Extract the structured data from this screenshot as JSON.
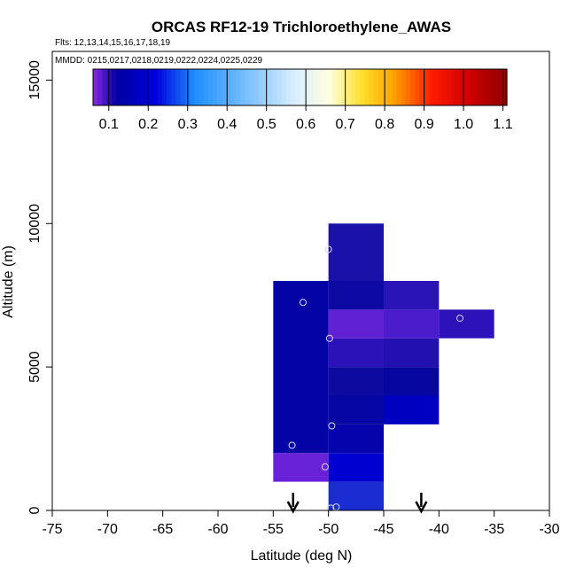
{
  "chart_data": {
    "type": "heatmap",
    "title": "ORCAS RF12-19 Trichloroethylene_AWAS",
    "flights_label": "Flts: 12,13,14,15,16,17,18,19",
    "dates_label": "MMDD: 0215,0217,0218,0219,0222,0224,0225,0229",
    "xlabel": "Latitude (deg N)",
    "ylabel": "Altitude (m)",
    "xlim": [
      -75,
      -30
    ],
    "ylim": [
      0,
      16000
    ],
    "x_ticks": [
      -75,
      -70,
      -65,
      -60,
      -55,
      -50,
      -45,
      -40,
      -35,
      -30
    ],
    "y_ticks": [
      0,
      5000,
      10000,
      15000
    ],
    "colorbar": {
      "min": 0.06,
      "max": 1.11,
      "ticks": [
        0.1,
        0.2,
        0.3,
        0.4,
        0.5,
        0.6,
        0.7,
        0.8,
        0.9,
        1.0,
        1.1
      ],
      "tick_labels": [
        "0.1",
        "0.2",
        "0.3",
        "0.4",
        "0.5",
        "0.6",
        "0.7",
        "0.8",
        "0.9",
        "1.0",
        "1.1"
      ],
      "stops": [
        {
          "v": 0.06,
          "c": "#8b2be2"
        },
        {
          "v": 0.12,
          "c": "#0000a0"
        },
        {
          "v": 0.22,
          "c": "#0000dd"
        },
        {
          "v": 0.32,
          "c": "#1e90ff"
        },
        {
          "v": 0.45,
          "c": "#79bfff"
        },
        {
          "v": 0.57,
          "c": "#d8eeff"
        },
        {
          "v": 0.66,
          "c": "#ffffe0"
        },
        {
          "v": 0.74,
          "c": "#ffe030"
        },
        {
          "v": 0.82,
          "c": "#ffa500"
        },
        {
          "v": 0.92,
          "c": "#ff1a00"
        },
        {
          "v": 1.02,
          "c": "#cc0000"
        },
        {
          "v": 1.11,
          "c": "#8b0000"
        }
      ]
    },
    "cells": [
      {
        "lat0": -55,
        "lat1": -50,
        "alt0": 1000,
        "alt1": 2000,
        "color": "#6a22d8"
      },
      {
        "lat0": -55,
        "lat1": -50,
        "alt0": 2000,
        "alt1": 8000,
        "color": "#0404a6"
      },
      {
        "lat0": -50,
        "lat1": -45,
        "alt0": 0,
        "alt1": 1000,
        "color": "#1a2dd0"
      },
      {
        "lat0": -50,
        "lat1": -45,
        "alt0": 1000,
        "alt1": 2000,
        "color": "#0000d0"
      },
      {
        "lat0": -50,
        "lat1": -45,
        "alt0": 2000,
        "alt1": 3000,
        "color": "#0404ac"
      },
      {
        "lat0": -50,
        "lat1": -45,
        "alt0": 3000,
        "alt1": 4000,
        "color": "#0606a4"
      },
      {
        "lat0": -50,
        "lat1": -45,
        "alt0": 4000,
        "alt1": 5000,
        "color": "#0d0aa0"
      },
      {
        "lat0": -50,
        "lat1": -45,
        "alt0": 5000,
        "alt1": 6000,
        "color": "#2a12b8"
      },
      {
        "lat0": -50,
        "lat1": -45,
        "alt0": 6000,
        "alt1": 7000,
        "color": "#6020d4"
      },
      {
        "lat0": -50,
        "lat1": -45,
        "alt0": 7000,
        "alt1": 8000,
        "color": "#0c0aa2"
      },
      {
        "lat0": -50,
        "lat1": -45,
        "alt0": 8000,
        "alt1": 10000,
        "color": "#1a10aa"
      },
      {
        "lat0": -45,
        "lat1": -40,
        "alt0": 3000,
        "alt1": 4000,
        "color": "#0000c0"
      },
      {
        "lat0": -45,
        "lat1": -40,
        "alt0": 4000,
        "alt1": 5000,
        "color": "#0606a0"
      },
      {
        "lat0": -45,
        "lat1": -40,
        "alt0": 5000,
        "alt1": 6000,
        "color": "#2210b0"
      },
      {
        "lat0": -45,
        "lat1": -40,
        "alt0": 6000,
        "alt1": 7000,
        "color": "#4a1ccc"
      },
      {
        "lat0": -45,
        "lat1": -40,
        "alt0": 7000,
        "alt1": 8000,
        "color": "#2a14b8"
      },
      {
        "lat0": -40,
        "lat1": -35,
        "alt0": 6000,
        "alt1": 7000,
        "color": "#2c12b8"
      }
    ],
    "points": [
      {
        "lat": -50,
        "alt": 9100
      },
      {
        "lat": -52.3,
        "alt": 7250
      },
      {
        "lat": -38.1,
        "alt": 6700
      },
      {
        "lat": -49.9,
        "alt": 6000
      },
      {
        "lat": -49.7,
        "alt": 2950
      },
      {
        "lat": -53.3,
        "alt": 2270
      },
      {
        "lat": -50.3,
        "alt": 1520
      },
      {
        "lat": -49.8,
        "alt": 80
      },
      {
        "lat": -49.3,
        "alt": 120
      }
    ],
    "arrows": [
      {
        "lat": -53.2
      },
      {
        "lat": -41.6
      }
    ]
  }
}
